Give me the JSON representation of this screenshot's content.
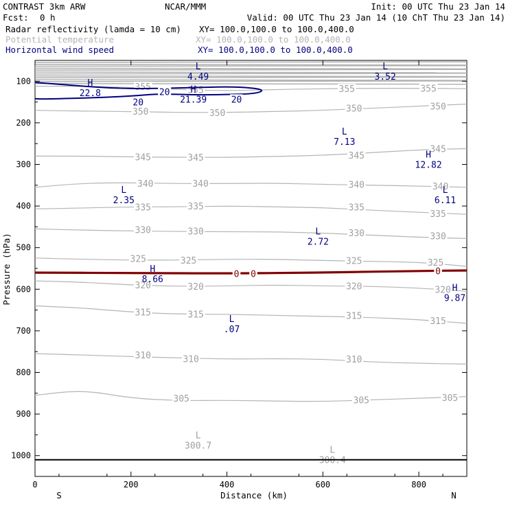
{
  "header": {
    "model": "CONTRAST  3km ARW",
    "org": "NCAR/MMM",
    "init": "Init: 00 UTC Thu 23 Jan 14",
    "fcst_label": "Fcst:",
    "fcst_value": "0 h",
    "valid": "Valid: 00 UTC Thu 23 Jan 14 (10 ChT Thu 23 Jan 14)"
  },
  "legend": [
    {
      "name": "Radar reflectivity (lamda = 10 cm)",
      "xy": "XY= 100.0,100.0 to 100.0,400.0",
      "color": "#000000"
    },
    {
      "name": "Potential temperature",
      "xy": "XY= 100.0,100.0 to 100.0,400.0",
      "color": "#b4b4b4"
    },
    {
      "name": "Horizontal wind speed",
      "xy": "XY= 100.0,100.0 to 100.0,400.0",
      "color": "#000080"
    }
  ],
  "chart_data": {
    "type": "line",
    "xlabel": "Distance (km)",
    "ylabel": "Pressure (hPa)",
    "xlim": [
      0,
      900
    ],
    "ylim": [
      1050,
      50
    ],
    "x_ticks": [
      0,
      200,
      400,
      600,
      800
    ],
    "y_ticks": [
      100,
      200,
      300,
      400,
      500,
      600,
      700,
      800,
      900,
      1000
    ],
    "x_end_labels": {
      "left": "S",
      "right": "N"
    },
    "surface_line_hPa": 1010,
    "potential_temperature": {
      "color": "#b4b4b4",
      "contours": [
        {
          "level": 305,
          "points": [
            [
              0,
              855
            ],
            [
              100,
              842
            ],
            [
              200,
              862
            ],
            [
              300,
              868
            ],
            [
              400,
              867
            ],
            [
              500,
              869
            ],
            [
              600,
              870
            ],
            [
              700,
              866
            ],
            [
              800,
              862
            ],
            [
              900,
              858
            ]
          ],
          "labels": [
            [
              305,
              862
            ],
            [
              680,
              866
            ],
            [
              865,
              860
            ]
          ]
        },
        {
          "level": 310,
          "points": [
            [
              0,
              755
            ],
            [
              100,
              758
            ],
            [
              200,
              762
            ],
            [
              300,
              765
            ],
            [
              400,
              768
            ],
            [
              500,
              767
            ],
            [
              600,
              768
            ],
            [
              700,
              775
            ],
            [
              800,
              778
            ],
            [
              900,
              780
            ]
          ],
          "labels": [
            [
              225,
              758
            ],
            [
              325,
              767
            ],
            [
              665,
              768
            ]
          ]
        },
        {
          "level": 315,
          "points": [
            [
              0,
              640
            ],
            [
              100,
              645
            ],
            [
              200,
              655
            ],
            [
              300,
              660
            ],
            [
              400,
              660
            ],
            [
              500,
              663
            ],
            [
              600,
              665
            ],
            [
              700,
              668
            ],
            [
              800,
              673
            ],
            [
              900,
              682
            ]
          ],
          "labels": [
            [
              225,
              655
            ],
            [
              335,
              660
            ],
            [
              665,
              663
            ],
            [
              840,
              675
            ]
          ]
        },
        {
          "level": 320,
          "points": [
            [
              0,
              580
            ],
            [
              100,
              583
            ],
            [
              200,
              590
            ],
            [
              300,
              593
            ],
            [
              400,
              592
            ],
            [
              500,
              590
            ],
            [
              600,
              592
            ],
            [
              700,
              593
            ],
            [
              800,
              597
            ],
            [
              900,
              605
            ]
          ],
          "labels": [
            [
              225,
              590
            ],
            [
              335,
              593
            ],
            [
              665,
              592
            ],
            [
              850,
              600
            ]
          ]
        },
        {
          "level": 325,
          "points": [
            [
              0,
              525
            ],
            [
              100,
              528
            ],
            [
              200,
              530
            ],
            [
              300,
              530
            ],
            [
              400,
              528
            ],
            [
              500,
              528
            ],
            [
              600,
              531
            ],
            [
              700,
              533
            ],
            [
              800,
              535
            ],
            [
              900,
              545
            ]
          ],
          "labels": [
            [
              215,
              526
            ],
            [
              320,
              530
            ],
            [
              665,
              531
            ],
            [
              835,
              535
            ]
          ]
        },
        {
          "level": 330,
          "points": [
            [
              0,
              455
            ],
            [
              100,
              458
            ],
            [
              200,
              460
            ],
            [
              300,
              461
            ],
            [
              400,
              462
            ],
            [
              500,
              462
            ],
            [
              600,
              465
            ],
            [
              700,
              470
            ],
            [
              800,
              475
            ],
            [
              900,
              478
            ]
          ],
          "labels": [
            [
              225,
              457
            ],
            [
              335,
              460
            ],
            [
              670,
              464
            ],
            [
              840,
              472
            ]
          ]
        },
        {
          "level": 335,
          "points": [
            [
              0,
              407
            ],
            [
              100,
              405
            ],
            [
              200,
              402
            ],
            [
              300,
              402
            ],
            [
              400,
              400
            ],
            [
              500,
              402
            ],
            [
              600,
              404
            ],
            [
              700,
              410
            ],
            [
              800,
              415
            ],
            [
              900,
              420
            ]
          ],
          "labels": [
            [
              225,
              402
            ],
            [
              335,
              400
            ],
            [
              670,
              402
            ],
            [
              840,
              418
            ]
          ]
        },
        {
          "level": 340,
          "points": [
            [
              0,
              355
            ],
            [
              100,
              345
            ],
            [
              200,
              344
            ],
            [
              300,
              346
            ],
            [
              400,
              346
            ],
            [
              500,
              345
            ],
            [
              600,
              348
            ],
            [
              700,
              350
            ],
            [
              800,
              352
            ],
            [
              900,
              355
            ]
          ],
          "labels": [
            [
              230,
              345
            ],
            [
              345,
              345
            ],
            [
              670,
              348
            ],
            [
              845,
              352
            ]
          ]
        },
        {
          "level": 345,
          "points": [
            [
              0,
              280
            ],
            [
              100,
              280
            ],
            [
              200,
              282
            ],
            [
              300,
              283
            ],
            [
              400,
              283
            ],
            [
              500,
              281
            ],
            [
              600,
              278
            ],
            [
              700,
              272
            ],
            [
              800,
              265
            ],
            [
              900,
              262
            ]
          ],
          "labels": [
            [
              225,
              282
            ],
            [
              335,
              283
            ],
            [
              670,
              278
            ],
            [
              840,
              262
            ]
          ]
        },
        {
          "level": 350,
          "points": [
            [
              0,
              170
            ],
            [
              100,
              172
            ],
            [
              200,
              173
            ],
            [
              300,
              175
            ],
            [
              400,
              175
            ],
            [
              500,
              173
            ],
            [
              600,
              170
            ],
            [
              700,
              165
            ],
            [
              800,
              160
            ],
            [
              900,
              155
            ]
          ],
          "labels": [
            [
              220,
              172
            ],
            [
              380,
              175
            ],
            [
              665,
              165
            ],
            [
              840,
              160
            ]
          ]
        },
        {
          "level": 355,
          "points": [
            [
              0,
              112
            ],
            [
              100,
              112
            ],
            [
              200,
              115
            ],
            [
              300,
              120
            ],
            [
              400,
              123
            ],
            [
              500,
              120
            ],
            [
              600,
              118
            ],
            [
              700,
              117
            ],
            [
              800,
              117
            ],
            [
              900,
              118
            ]
          ],
          "labels": [
            [
              225,
              113
            ],
            [
              335,
              120
            ],
            [
              650,
              118
            ],
            [
              820,
              117
            ]
          ]
        }
      ]
    },
    "wind_speed": {
      "color": "#000080",
      "contours": [
        {
          "level": 20,
          "points": [
            [
              0,
              103
            ],
            [
              80,
              110
            ],
            [
              160,
              117
            ],
            [
              240,
              118
            ],
            [
              340,
              115
            ],
            [
              420,
              113
            ],
            [
              480,
              120
            ],
            [
              460,
              130
            ],
            [
              400,
              132
            ],
            [
              330,
              133
            ],
            [
              260,
              130
            ],
            [
              200,
              136
            ],
            [
              120,
              140
            ],
            [
              20,
              143
            ],
            [
              0,
              142
            ]
          ],
          "labels": [
            [
              270,
              125
            ],
            [
              215,
              150
            ],
            [
              420,
              143
            ]
          ]
        }
      ],
      "extrema": [
        {
          "type": "H",
          "x": 115,
          "p": 118,
          "value": "22.8"
        },
        {
          "type": "H",
          "x": 330,
          "p": 133,
          "value": "21.39"
        },
        {
          "type": "L",
          "x": 340,
          "p": 78,
          "value": "4.49"
        },
        {
          "type": "L",
          "x": 730,
          "p": 78,
          "value": "3.52"
        },
        {
          "type": "L",
          "x": 645,
          "p": 235,
          "value": "7.13"
        },
        {
          "type": "H",
          "x": 820,
          "p": 290,
          "value": "12.82"
        },
        {
          "type": "L",
          "x": 185,
          "p": 375,
          "value": "2.35"
        },
        {
          "type": "L",
          "x": 855,
          "p": 375,
          "value": "6.11"
        },
        {
          "type": "L",
          "x": 590,
          "p": 475,
          "value": "2.72"
        },
        {
          "type": "H",
          "x": 245,
          "p": 565,
          "value": "8.66"
        },
        {
          "type": "H",
          "x": 875,
          "p": 610,
          "value": "9.87"
        },
        {
          "type": "L",
          "x": 410,
          "p": 685,
          "value": ".07"
        }
      ]
    },
    "potential_temperature_extrema": [
      {
        "type": "L",
        "x": 340,
        "p": 965,
        "value": "300.7"
      },
      {
        "type": "L",
        "x": 620,
        "p": 1000,
        "value": "300.4"
      }
    ],
    "radar_reflectivity": {
      "color": "#800000",
      "contours": [
        {
          "level": 0,
          "points": [
            [
              0,
              560
            ],
            [
              200,
              561
            ],
            [
              400,
              562
            ],
            [
              600,
              560
            ],
            [
              800,
              556
            ],
            [
              900,
              555
            ]
          ],
          "labels": [
            [
              420,
              562
            ],
            [
              455,
              562
            ],
            [
              840,
              556
            ]
          ]
        }
      ]
    }
  }
}
